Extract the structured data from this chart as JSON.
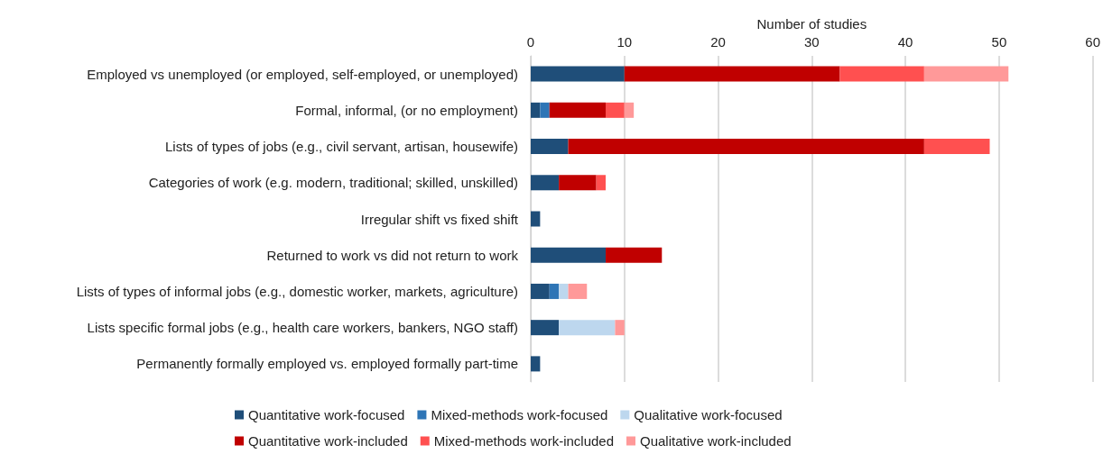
{
  "chart_data": {
    "type": "bar",
    "orientation": "horizontal",
    "stacked": true,
    "xlabel": "Number of studies",
    "categories": [
      "Employed vs unemployed (or employed, self-employed, or unemployed)",
      "Formal, informal, (or no employment)",
      "Lists of types of jobs (e.g., civil servant, artisan, housewife)",
      "Categories of work (e.g. modern, traditional; skilled, unskilled)",
      "Irregular shift vs fixed shift",
      "Returned to work vs did not return to work",
      "Lists of types of informal jobs (e.g., domestic worker, markets, agriculture)",
      "Lists specific formal jobs (e.g., health care workers, bankers, NGO staff)",
      "Permanently formally employed vs. employed formally part-time"
    ],
    "series": [
      {
        "name": "Quantitative work-focused",
        "color": "#1f4e79",
        "values": [
          10,
          1,
          4,
          3,
          1,
          8,
          2,
          3,
          1
        ]
      },
      {
        "name": "Mixed-methods work-focused",
        "color": "#2e75b6",
        "values": [
          0,
          1,
          0,
          0,
          0,
          0,
          1,
          0,
          0
        ]
      },
      {
        "name": "Qualitative work-focused",
        "color": "#bdd7ee",
        "values": [
          0,
          0,
          0,
          0,
          0,
          0,
          1,
          6,
          0
        ]
      },
      {
        "name": "Quantitative work-included",
        "color": "#c00000",
        "values": [
          23,
          6,
          38,
          4,
          0,
          6,
          0,
          0,
          0
        ]
      },
      {
        "name": "Mixed-methods work-included",
        "color": "#ff5050",
        "values": [
          9,
          2,
          7,
          1,
          0,
          0,
          0,
          0,
          0
        ]
      },
      {
        "name": "Qualitative work-included",
        "color": "#ff9999",
        "values": [
          9,
          1,
          0,
          0,
          0,
          0,
          2,
          1,
          0
        ]
      }
    ],
    "xlim": [
      0,
      60
    ],
    "xticks": [
      0,
      10,
      20,
      30,
      40,
      50,
      60
    ],
    "grid": "x",
    "legend": "bottom"
  }
}
